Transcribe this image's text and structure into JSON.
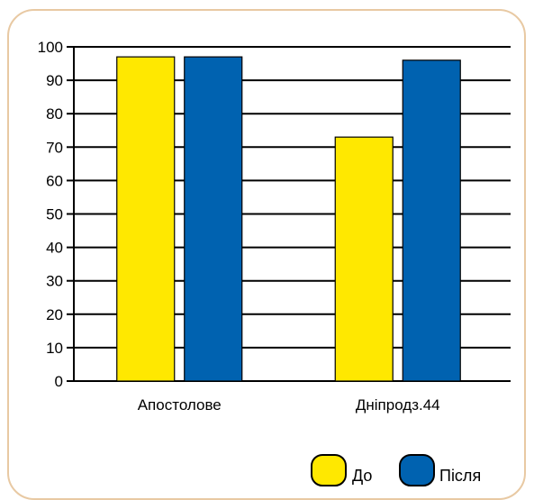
{
  "chart_data": {
    "type": "bar",
    "categories": [
      "Апостолове",
      "Дніпродз.44"
    ],
    "series": [
      {
        "name": "До",
        "values": [
          97,
          73
        ],
        "color": "#ffe800"
      },
      {
        "name": "Після",
        "values": [
          97,
          96
        ],
        "color": "#0062b0"
      }
    ],
    "ylim": [
      0,
      100
    ],
    "yticks": [
      "0",
      "10",
      "20",
      "30",
      "40",
      "50",
      "60",
      "70",
      "80",
      "90",
      "100"
    ],
    "grid": true,
    "legend_position": "bottom-right",
    "frame_color": "#e8c9a3"
  }
}
